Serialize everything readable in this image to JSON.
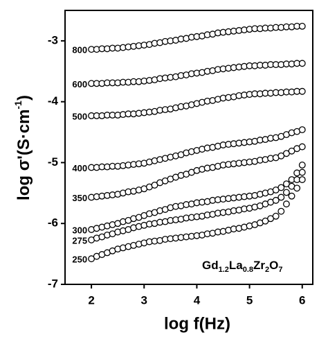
{
  "chart_data": {
    "type": "scatter",
    "xlabel": "log f(Hz)",
    "ylabel": [
      "log σ'(S·cm",
      "-1",
      ")"
    ],
    "annotation": [
      "Gd",
      "1.2",
      "La",
      "0.8",
      "Zr",
      "2",
      "O",
      "7"
    ],
    "xlim": [
      1.5,
      6.2
    ],
    "ylim": [
      -7,
      -2.5
    ],
    "xticks": [
      2,
      3,
      4,
      5,
      6
    ],
    "yticks": [
      -3,
      -4,
      -5,
      -6,
      -7
    ],
    "marker_color": "#000000",
    "x": [
      2.0,
      2.1,
      2.2,
      2.3,
      2.4,
      2.5,
      2.6,
      2.7,
      2.8,
      2.9,
      3.0,
      3.1,
      3.2,
      3.3,
      3.4,
      3.5,
      3.6,
      3.7,
      3.8,
      3.9,
      4.0,
      4.1,
      4.2,
      4.3,
      4.4,
      4.5,
      4.6,
      4.7,
      4.8,
      4.9,
      5.0,
      5.1,
      5.2,
      5.3,
      5.4,
      5.5,
      5.6,
      5.7,
      5.8,
      5.9,
      6.0
    ],
    "series": [
      {
        "name": "800",
        "values": [
          -3.14,
          -3.14,
          -3.13,
          -3.13,
          -3.12,
          -3.12,
          -3.11,
          -3.1,
          -3.09,
          -3.08,
          -3.07,
          -3.06,
          -3.04,
          -3.03,
          -3.01,
          -3.0,
          -2.99,
          -2.97,
          -2.96,
          -2.94,
          -2.93,
          -2.92,
          -2.9,
          -2.89,
          -2.87,
          -2.86,
          -2.85,
          -2.84,
          -2.83,
          -2.82,
          -2.81,
          -2.8,
          -2.8,
          -2.79,
          -2.79,
          -2.78,
          -2.78,
          -2.77,
          -2.77,
          -2.76,
          -2.76
        ]
      },
      {
        "name": "600",
        "values": [
          -3.7,
          -3.7,
          -3.7,
          -3.69,
          -3.69,
          -3.69,
          -3.68,
          -3.68,
          -3.67,
          -3.67,
          -3.66,
          -3.65,
          -3.64,
          -3.62,
          -3.61,
          -3.6,
          -3.59,
          -3.57,
          -3.56,
          -3.54,
          -3.53,
          -3.52,
          -3.5,
          -3.49,
          -3.47,
          -3.46,
          -3.45,
          -3.44,
          -3.43,
          -3.42,
          -3.41,
          -3.41,
          -3.4,
          -3.4,
          -3.39,
          -3.39,
          -3.39,
          -3.38,
          -3.38,
          -3.37,
          -3.37
        ]
      },
      {
        "name": "500",
        "values": [
          -4.23,
          -4.23,
          -4.23,
          -4.22,
          -4.22,
          -4.22,
          -4.21,
          -4.2,
          -4.2,
          -4.19,
          -4.18,
          -4.17,
          -4.16,
          -4.14,
          -4.13,
          -4.12,
          -4.1,
          -4.08,
          -4.07,
          -4.05,
          -4.03,
          -4.01,
          -3.99,
          -3.98,
          -3.96,
          -3.94,
          -3.93,
          -3.92,
          -3.9,
          -3.89,
          -3.88,
          -3.87,
          -3.87,
          -3.86,
          -3.86,
          -3.85,
          -3.85,
          -3.84,
          -3.84,
          -3.83,
          -3.83
        ]
      },
      {
        "name": "400",
        "values": [
          -5.08,
          -5.08,
          -5.07,
          -5.07,
          -5.06,
          -5.06,
          -5.05,
          -5.04,
          -5.03,
          -5.02,
          -5.01,
          -4.99,
          -4.97,
          -4.95,
          -4.93,
          -4.91,
          -4.89,
          -4.87,
          -4.84,
          -4.82,
          -4.8,
          -4.78,
          -4.76,
          -4.75,
          -4.73,
          -4.71,
          -4.7,
          -4.69,
          -4.68,
          -4.67,
          -4.66,
          -4.65,
          -4.63,
          -4.62,
          -4.6,
          -4.59,
          -4.57,
          -4.54,
          -4.51,
          -4.49,
          -4.46
        ]
      },
      {
        "name": "350",
        "values": [
          -5.57,
          -5.56,
          -5.55,
          -5.54,
          -5.53,
          -5.52,
          -5.5,
          -5.48,
          -5.47,
          -5.45,
          -5.43,
          -5.4,
          -5.37,
          -5.33,
          -5.3,
          -5.27,
          -5.24,
          -5.21,
          -5.19,
          -5.16,
          -5.13,
          -5.11,
          -5.09,
          -5.08,
          -5.06,
          -5.04,
          -5.03,
          -5.02,
          -5.01,
          -5.0,
          -4.99,
          -4.98,
          -4.96,
          -4.95,
          -4.93,
          -4.92,
          -4.89,
          -4.85,
          -4.81,
          -4.77,
          -4.74
        ]
      },
      {
        "name": "300",
        "values": [
          -6.1,
          -6.08,
          -6.06,
          -6.04,
          -6.02,
          -6.0,
          -5.97,
          -5.95,
          -5.92,
          -5.9,
          -5.87,
          -5.84,
          -5.82,
          -5.79,
          -5.77,
          -5.74,
          -5.72,
          -5.71,
          -5.69,
          -5.68,
          -5.66,
          -5.65,
          -5.64,
          -5.62,
          -5.61,
          -5.6,
          -5.59,
          -5.58,
          -5.57,
          -5.56,
          -5.55,
          -5.54,
          -5.52,
          -5.5,
          -5.48,
          -5.45,
          -5.41,
          -5.35,
          -5.28,
          -5.17,
          -5.04
        ]
      },
      {
        "name": "275",
        "values": [
          -6.27,
          -6.24,
          -6.22,
          -6.19,
          -6.17,
          -6.14,
          -6.12,
          -6.1,
          -6.07,
          -6.05,
          -6.03,
          -6.01,
          -6.0,
          -5.98,
          -5.97,
          -5.95,
          -5.94,
          -5.93,
          -5.91,
          -5.9,
          -5.89,
          -5.88,
          -5.86,
          -5.85,
          -5.83,
          -5.82,
          -5.81,
          -5.79,
          -5.78,
          -5.76,
          -5.75,
          -5.73,
          -5.71,
          -5.68,
          -5.65,
          -5.62,
          -5.57,
          -5.49,
          -5.39,
          -5.28,
          -5.16
        ]
      },
      {
        "name": "250",
        "values": [
          -6.58,
          -6.54,
          -6.51,
          -6.48,
          -6.45,
          -6.42,
          -6.4,
          -6.38,
          -6.36,
          -6.34,
          -6.32,
          -6.3,
          -6.29,
          -6.28,
          -6.26,
          -6.25,
          -6.24,
          -6.23,
          -6.22,
          -6.21,
          -6.2,
          -6.19,
          -6.17,
          -6.16,
          -6.14,
          -6.13,
          -6.11,
          -6.09,
          -6.08,
          -6.06,
          -6.04,
          -6.02,
          -5.99,
          -5.96,
          -5.92,
          -5.88,
          -5.8,
          -5.68,
          -5.55,
          -5.42,
          -5.28
        ]
      }
    ]
  }
}
